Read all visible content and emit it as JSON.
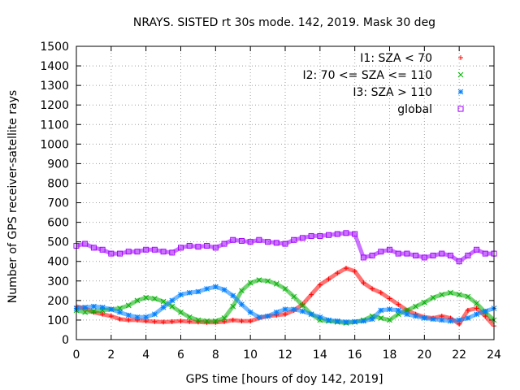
{
  "chart_data": {
    "type": "scatter",
    "title": "NRAYS. SISTED rt 30s mode. 142, 2019. Mask 30 deg",
    "xlabel": "GPS time [hours of doy 142, 2019]",
    "ylabel": "Number of GPS receiver-satellite rays",
    "xlim": [
      0,
      24
    ],
    "ylim": [
      0,
      1500
    ],
    "xticks": [
      "0",
      "2",
      "4",
      "6",
      "8",
      "10",
      "12",
      "14",
      "16",
      "18",
      "20",
      "22",
      "24"
    ],
    "yticks": [
      "0",
      "100",
      "200",
      "300",
      "400",
      "500",
      "600",
      "700",
      "800",
      "900",
      "1000",
      "1100",
      "1200",
      "1300",
      "1400",
      "1500"
    ],
    "grid": true,
    "legend_position": "top-right",
    "series": [
      {
        "name": "I1: SZA < 70",
        "marker": "plus",
        "color": "#ff0000",
        "x": [
          0,
          0.5,
          1,
          1.5,
          2,
          2.5,
          3,
          3.5,
          4,
          4.5,
          5,
          5.5,
          6,
          6.5,
          7,
          7.5,
          8,
          8.5,
          9,
          9.5,
          10,
          10.5,
          11,
          11.5,
          12,
          12.5,
          13,
          13.5,
          14,
          14.5,
          15,
          15.5,
          16,
          16.5,
          17,
          17.5,
          18,
          18.5,
          19,
          19.5,
          20,
          20.5,
          21,
          21.5,
          22,
          22.5,
          23,
          23.5,
          24
        ],
        "values": [
          170,
          160,
          140,
          130,
          120,
          105,
          100,
          100,
          95,
          92,
          90,
          92,
          95,
          92,
          90,
          88,
          88,
          92,
          100,
          95,
          95,
          110,
          120,
          125,
          130,
          150,
          180,
          230,
          280,
          310,
          340,
          365,
          350,
          290,
          260,
          240,
          210,
          180,
          150,
          130,
          115,
          110,
          120,
          110,
          80,
          150,
          160,
          120,
          70
        ]
      },
      {
        "name": "I2: 70 <= SZA <= 110",
        "marker": "cross",
        "color": "#00b000",
        "x": [
          0,
          0.5,
          1,
          1.5,
          2,
          2.5,
          3,
          3.5,
          4,
          4.5,
          5,
          5.5,
          6,
          6.5,
          7,
          7.5,
          8,
          8.5,
          9,
          9.5,
          10,
          10.5,
          11,
          11.5,
          12,
          12.5,
          13,
          13.5,
          14,
          14.5,
          15,
          15.5,
          16,
          16.5,
          17,
          17.5,
          18,
          18.5,
          19,
          19.5,
          20,
          20.5,
          21,
          21.5,
          22,
          22.5,
          23,
          23.5,
          24
        ],
        "values": [
          150,
          140,
          145,
          150,
          155,
          160,
          175,
          200,
          215,
          210,
          195,
          170,
          140,
          115,
          100,
          95,
          95,
          110,
          170,
          250,
          290,
          305,
          300,
          285,
          260,
          220,
          175,
          130,
          100,
          95,
          90,
          85,
          90,
          100,
          120,
          110,
          100,
          130,
          150,
          170,
          190,
          215,
          230,
          240,
          230,
          220,
          185,
          140,
          100
        ]
      },
      {
        "name": "I3: SZA > 110",
        "marker": "star",
        "color": "#0080ff",
        "x": [
          0,
          0.5,
          1,
          1.5,
          2,
          2.5,
          3,
          3.5,
          4,
          4.5,
          5,
          5.5,
          6,
          6.5,
          7,
          7.5,
          8,
          8.5,
          9,
          9.5,
          10,
          10.5,
          11,
          11.5,
          12,
          12.5,
          13,
          13.5,
          14,
          14.5,
          15,
          15.5,
          16,
          16.5,
          17,
          17.5,
          18,
          18.5,
          19,
          19.5,
          20,
          20.5,
          21,
          21.5,
          22,
          22.5,
          23,
          23.5,
          24
        ],
        "values": [
          160,
          165,
          170,
          165,
          155,
          140,
          125,
          115,
          115,
          130,
          165,
          200,
          230,
          240,
          245,
          260,
          270,
          255,
          225,
          180,
          140,
          115,
          120,
          140,
          155,
          155,
          145,
          130,
          115,
          100,
          95,
          90,
          92,
          95,
          105,
          150,
          155,
          150,
          130,
          120,
          110,
          105,
          100,
          95,
          100,
          110,
          130,
          145,
          160
        ]
      },
      {
        "name": "global",
        "marker": "square",
        "color": "#a000ff",
        "x": [
          0,
          0.5,
          1,
          1.5,
          2,
          2.5,
          3,
          3.5,
          4,
          4.5,
          5,
          5.5,
          6,
          6.5,
          7,
          7.5,
          8,
          8.5,
          9,
          9.5,
          10,
          10.5,
          11,
          11.5,
          12,
          12.5,
          13,
          13.5,
          14,
          14.5,
          15,
          15.5,
          16,
          16.5,
          17,
          17.5,
          18,
          18.5,
          19,
          19.5,
          20,
          20.5,
          21,
          21.5,
          22,
          22.5,
          23,
          23.5,
          24
        ],
        "values": [
          480,
          490,
          470,
          460,
          440,
          440,
          450,
          450,
          460,
          460,
          450,
          445,
          470,
          480,
          475,
          480,
          470,
          490,
          510,
          505,
          500,
          510,
          500,
          495,
          490,
          510,
          520,
          530,
          530,
          535,
          540,
          545,
          540,
          420,
          430,
          450,
          460,
          440,
          440,
          430,
          420,
          430,
          440,
          430,
          400,
          430,
          460,
          440,
          440
        ]
      }
    ]
  }
}
